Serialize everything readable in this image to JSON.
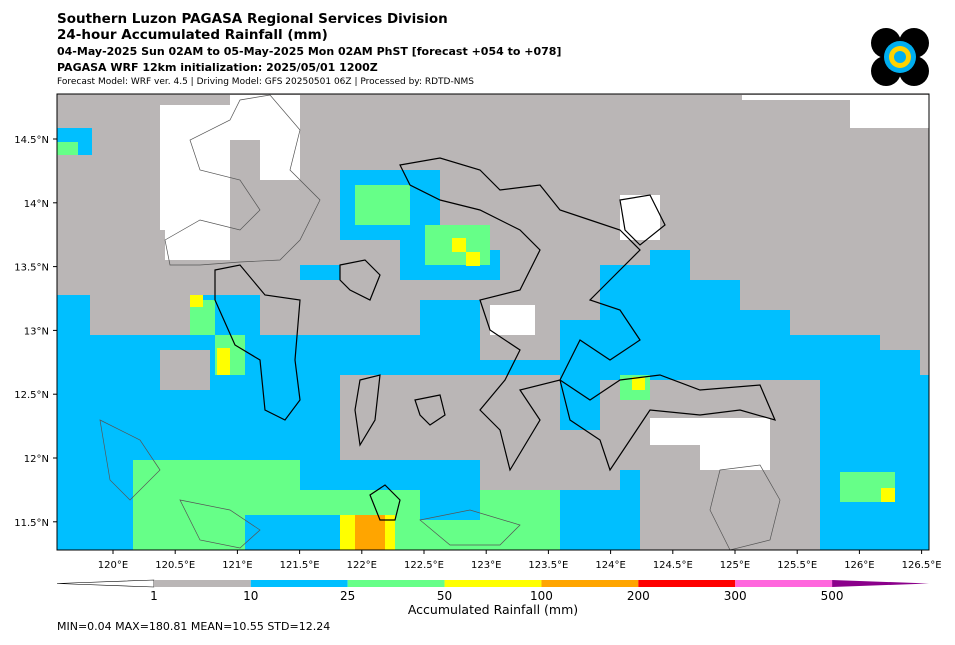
{
  "header": {
    "title": "Southern Luzon PAGASA Regional Services Division",
    "subtitle": "24-hour Accumulated Rainfall (mm)",
    "period": "04-May-2025 Sun 02AM to 05-May-2025 Mon 02AM PhST [forecast +054 to +078]",
    "model": "PAGASA WRF 12km initialization: 2025/05/01 1200Z",
    "note": "Forecast Model: WRF ver. 4.5 | Driving Model: GFS 20250501 06Z | Processed by: RDTD-NMS"
  },
  "map": {
    "lon_labels": [
      "120°E",
      "120.5°E",
      "121°E",
      "121.5°E",
      "122°E",
      "122.5°E",
      "123°E",
      "123.5°E",
      "124°E",
      "124.5°E",
      "125°E",
      "125.5°E",
      "126°E",
      "126.5°E"
    ],
    "lat_labels": [
      "14.5°N",
      "14°N",
      "13.5°N",
      "13°N",
      "12.5°N",
      "12°N",
      "11.5°N"
    ]
  },
  "colorbar": {
    "title": "Accumulated Rainfall (mm)",
    "labels": [
      "1",
      "10",
      "25",
      "50",
      "100",
      "200",
      "300",
      "500"
    ],
    "colors": [
      "#ffffff",
      "#bab6b6",
      "#00bfff",
      "#66ff88",
      "#ffff00",
      "#ffa500",
      "#ff0000",
      "#ff66dd",
      "#8b008b"
    ]
  },
  "stats": "MIN=0.04   MAX=180.81   MEAN=10.55   STD=12.24"
}
